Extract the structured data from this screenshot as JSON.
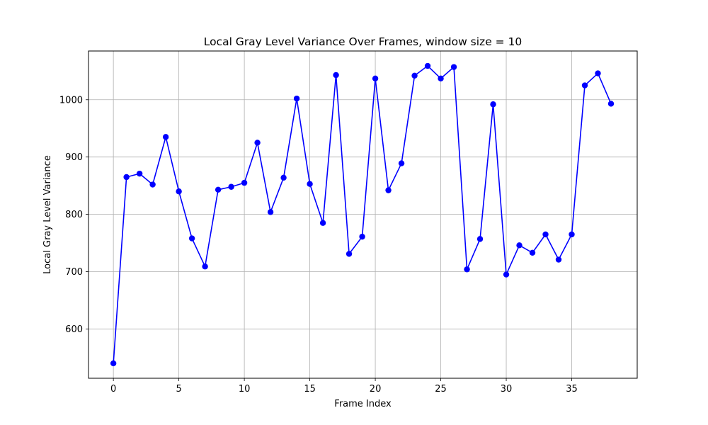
{
  "chart_data": {
    "type": "line",
    "title": "Local Gray Level Variance Over Frames, window size = 10",
    "xlabel": "Frame Index",
    "ylabel": "Local Gray Level Variance",
    "xlim": [
      -1.9,
      40.0
    ],
    "ylim": [
      514,
      1085
    ],
    "xticks": [
      0,
      5,
      10,
      15,
      20,
      25,
      30,
      35
    ],
    "yticks": [
      600,
      700,
      800,
      900,
      1000
    ],
    "grid": true,
    "series": [
      {
        "color": "#0000ff",
        "marker": "circle",
        "x": [
          0,
          1,
          2,
          3,
          4,
          5,
          6,
          7,
          8,
          9,
          10,
          11,
          12,
          13,
          14,
          15,
          16,
          17,
          18,
          19,
          20,
          21,
          22,
          23,
          24,
          25,
          26,
          27,
          28,
          29,
          30,
          31,
          32,
          33,
          34,
          35,
          36,
          37,
          38
        ],
        "y": [
          540,
          865,
          871,
          852,
          935,
          840,
          758,
          709,
          843,
          848,
          855,
          925,
          804,
          864,
          1002,
          853,
          785,
          1043,
          731,
          761,
          1037,
          842,
          889,
          1042,
          1059,
          1037,
          1057,
          704,
          757,
          992,
          695,
          746,
          733,
          765,
          721,
          765,
          1025,
          1046,
          993
        ]
      }
    ]
  }
}
